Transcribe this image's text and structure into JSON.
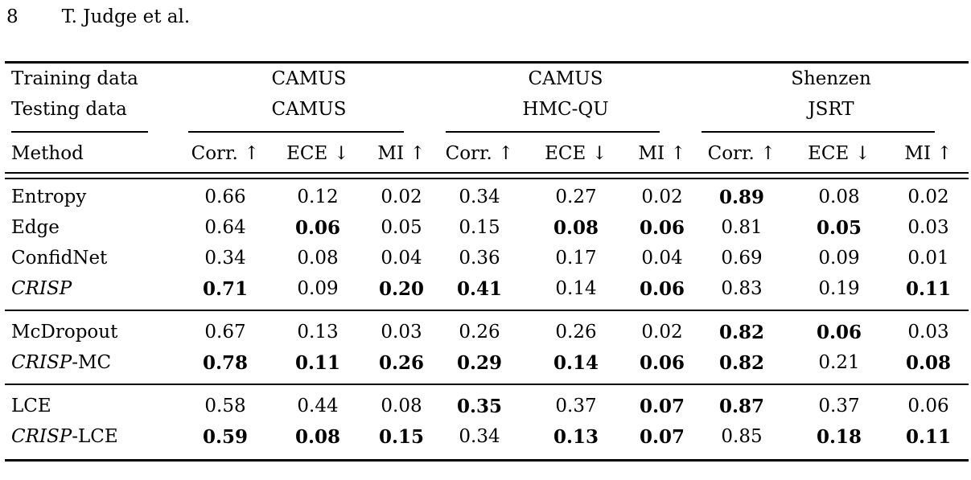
{
  "page": {
    "page_number": "8",
    "running_head": "T. Judge et al."
  },
  "table": {
    "training_label": "Training data",
    "testing_label": "Testing data",
    "method_label": "Method",
    "groups": [
      {
        "training": "CAMUS",
        "testing": "CAMUS"
      },
      {
        "training": "CAMUS",
        "testing": "HMC-QU"
      },
      {
        "training": "Shenzen",
        "testing": "JSRT"
      }
    ],
    "metrics": [
      "Corr. ↑",
      "ECE ↓",
      "MI ↑"
    ],
    "blocks": [
      {
        "rows": [
          {
            "method": {
              "italic": "",
              "plain": "Entropy"
            },
            "values": [
              {
                "text": "0.66",
                "bold": false
              },
              {
                "text": "0.12",
                "bold": false
              },
              {
                "text": "0.02",
                "bold": false
              },
              {
                "text": "0.34",
                "bold": false
              },
              {
                "text": "0.27",
                "bold": false
              },
              {
                "text": "0.02",
                "bold": false
              },
              {
                "text": "0.89",
                "bold": true
              },
              {
                "text": "0.08",
                "bold": false
              },
              {
                "text": "0.02",
                "bold": false
              }
            ]
          },
          {
            "method": {
              "italic": "",
              "plain": "Edge"
            },
            "values": [
              {
                "text": "0.64",
                "bold": false
              },
              {
                "text": "0.06",
                "bold": true
              },
              {
                "text": "0.05",
                "bold": false
              },
              {
                "text": "0.15",
                "bold": false
              },
              {
                "text": "0.08",
                "bold": true
              },
              {
                "text": "0.06",
                "bold": true
              },
              {
                "text": "0.81",
                "bold": false
              },
              {
                "text": "0.05",
                "bold": true
              },
              {
                "text": "0.03",
                "bold": false
              }
            ]
          },
          {
            "method": {
              "italic": "",
              "plain": "ConfidNet"
            },
            "values": [
              {
                "text": "0.34",
                "bold": false
              },
              {
                "text": "0.08",
                "bold": false
              },
              {
                "text": "0.04",
                "bold": false
              },
              {
                "text": "0.36",
                "bold": false
              },
              {
                "text": "0.17",
                "bold": false
              },
              {
                "text": "0.04",
                "bold": false
              },
              {
                "text": "0.69",
                "bold": false
              },
              {
                "text": "0.09",
                "bold": false
              },
              {
                "text": "0.01",
                "bold": false
              }
            ]
          },
          {
            "method": {
              "italic": "CRISP",
              "plain": ""
            },
            "values": [
              {
                "text": "0.71",
                "bold": true
              },
              {
                "text": "0.09",
                "bold": false
              },
              {
                "text": "0.20",
                "bold": true
              },
              {
                "text": "0.41",
                "bold": true
              },
              {
                "text": "0.14",
                "bold": false
              },
              {
                "text": "0.06",
                "bold": true
              },
              {
                "text": "0.83",
                "bold": false
              },
              {
                "text": "0.19",
                "bold": false
              },
              {
                "text": "0.11",
                "bold": true
              }
            ]
          }
        ]
      },
      {
        "rows": [
          {
            "method": {
              "italic": "",
              "plain": "McDropout"
            },
            "values": [
              {
                "text": "0.67",
                "bold": false
              },
              {
                "text": "0.13",
                "bold": false
              },
              {
                "text": "0.03",
                "bold": false
              },
              {
                "text": "0.26",
                "bold": false
              },
              {
                "text": "0.26",
                "bold": false
              },
              {
                "text": "0.02",
                "bold": false
              },
              {
                "text": "0.82",
                "bold": true
              },
              {
                "text": "0.06",
                "bold": true
              },
              {
                "text": "0.03",
                "bold": false
              }
            ]
          },
          {
            "method": {
              "italic": "CRISP",
              "plain": "-MC"
            },
            "values": [
              {
                "text": "0.78",
                "bold": true
              },
              {
                "text": "0.11",
                "bold": true
              },
              {
                "text": "0.26",
                "bold": true
              },
              {
                "text": "0.29",
                "bold": true
              },
              {
                "text": "0.14",
                "bold": true
              },
              {
                "text": "0.06",
                "bold": true
              },
              {
                "text": "0.82",
                "bold": true
              },
              {
                "text": "0.21",
                "bold": false
              },
              {
                "text": "0.08",
                "bold": true
              }
            ]
          }
        ]
      },
      {
        "rows": [
          {
            "method": {
              "italic": "",
              "plain": "LCE"
            },
            "values": [
              {
                "text": "0.58",
                "bold": false
              },
              {
                "text": "0.44",
                "bold": false
              },
              {
                "text": "0.08",
                "bold": false
              },
              {
                "text": "0.35",
                "bold": true
              },
              {
                "text": "0.37",
                "bold": false
              },
              {
                "text": "0.07",
                "bold": true
              },
              {
                "text": "0.87",
                "bold": true
              },
              {
                "text": "0.37",
                "bold": false
              },
              {
                "text": "0.06",
                "bold": false
              }
            ]
          },
          {
            "method": {
              "italic": "CRISP",
              "plain": "-LCE"
            },
            "values": [
              {
                "text": "0.59",
                "bold": true
              },
              {
                "text": "0.08",
                "bold": true
              },
              {
                "text": "0.15",
                "bold": true
              },
              {
                "text": "0.34",
                "bold": false
              },
              {
                "text": "0.13",
                "bold": true
              },
              {
                "text": "0.07",
                "bold": true
              },
              {
                "text": "0.85",
                "bold": false
              },
              {
                "text": "0.18",
                "bold": true
              },
              {
                "text": "0.11",
                "bold": true
              }
            ]
          }
        ]
      }
    ]
  }
}
